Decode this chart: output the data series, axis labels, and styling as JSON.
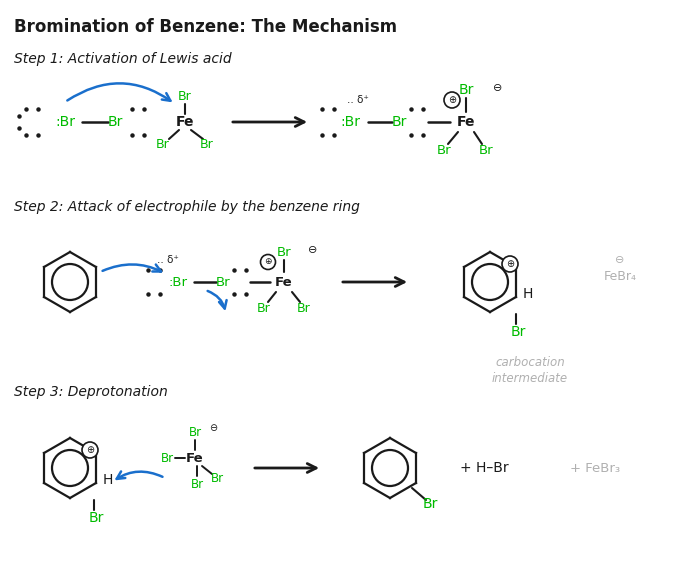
{
  "title": "Bromination of Benzene: The Mechanism",
  "bg_color": "#ffffff",
  "green": "#00bb00",
  "black": "#1a1a1a",
  "blue": "#1a6fcc",
  "gray": "#b0b0b0",
  "step1_label": "Step 1: Activation of Lewis acid",
  "step2_label": "Step 2: Attack of electrophile by the benzene ring",
  "step3_label": "Step 3: Deprotonation"
}
